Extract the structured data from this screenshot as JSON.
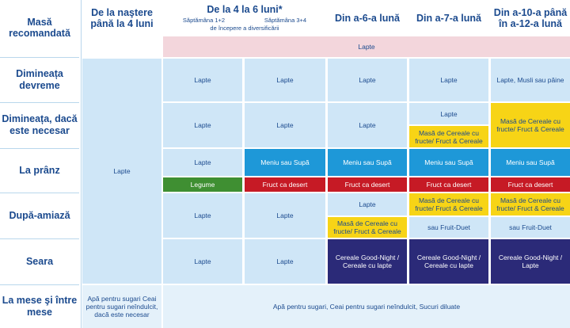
{
  "header": {
    "meal_label": "Masă recomandată",
    "col1": "De la naştere până la 4 luni",
    "col2": "De la 4 la 6 luni*",
    "col2_week_a": "Săptămâna 1+2",
    "col2_week_b": "Săptămâna 3+4",
    "col2_sub": "de începere a diversificării",
    "col3": "Din a-6-a lună",
    "col4": "Din a-7-a lună",
    "col5": "Din a-10-a până în a-12-a lună"
  },
  "rows": {
    "r1": "Dimineața devreme",
    "r2": "Dimineața, dacă este necesar",
    "r3": "La prânz",
    "r4": "După-amiază",
    "r5": "Seara",
    "r6": "La mese şi între mese"
  },
  "cells": {
    "banner_lapte": "Lapte",
    "c1_main": "Lapte",
    "r1_a": "Lapte",
    "r1_b": "Lapte",
    "r1_c": "Lapte",
    "r1_d": "Lapte",
    "r1_e": "Lapte, Musli sau pâine",
    "r2_a": "Lapte",
    "r2_b": "Lapte",
    "r2_c": "Lapte",
    "r2_d1": "Lapte",
    "r2_d2": "Masă de Cereale cu fructe/ Fruct & Cereale",
    "r2_e": "Masă de Cereale cu fructe/ Fruct & Cereale",
    "r3_a": "Lapte",
    "r3_b": "Meniu sau Supă",
    "r3_c": "Meniu sau Supă",
    "r3_d": "Meniu sau Supă",
    "r3_e": "Meniu sau Supă",
    "r3b_a": "Legume",
    "r3b_b": "Fruct ca desert",
    "r3b_c": "Fruct ca desert",
    "r3b_d": "Fruct ca desert",
    "r3b_e": "Fruct ca desert",
    "r4_a": "Lapte",
    "r4_b": "Lapte",
    "r4_c1": "Lapte",
    "r4_c2": "Masă de Cereale cu fructe/ Fruct & Cereale",
    "r4_d1": "Masă de Cereale cu fructe/ Fruct & Cereale",
    "r4_d2": "sau Fruit-Duet",
    "r4_e1": "Masă de Cereale cu fructe/ Fruct & Cereale",
    "r4_e2": "sau Fruit-Duet",
    "r5_a": "Lapte",
    "r5_b": "Lapte",
    "r5_c": "Cereale Good-Night / Cereale cu lapte",
    "r5_d": "Cereale Good-Night / Cereale cu lapte",
    "r5_e": "Cereale Good-Night / Lapte",
    "r6_c1": "Apă pentru sugari Ceai pentru sugari neîndulcit, dacă este necesar",
    "r6_rest": "Apă pentru sugari, Ceai pentru sugari neîndulcit, Sucuri diluate"
  }
}
